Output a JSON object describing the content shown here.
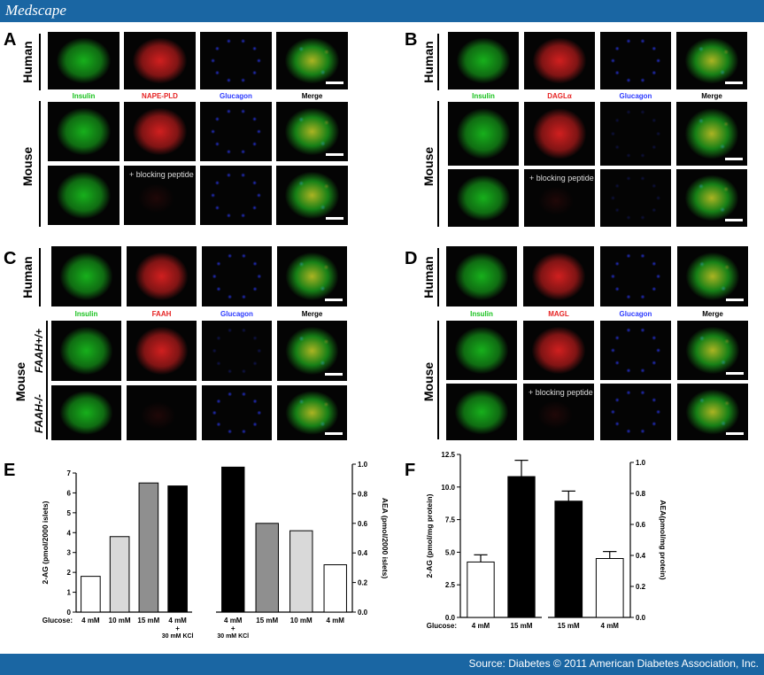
{
  "header": {
    "logo": "Medscape"
  },
  "footer": {
    "source": "Source: Diabetes © 2011 American Diabetes Association, Inc."
  },
  "colors": {
    "bar": "#1a66a3",
    "insulin": "#19c21e",
    "red": "#e62222",
    "glucagon": "#2d3bff"
  },
  "panels": {
    "A": {
      "letter": "A",
      "human": "Human",
      "mouse": "Mouse",
      "channels": [
        "Insulin",
        "NAPE-PLD",
        "Glucagon",
        "Merge"
      ],
      "note": "+ blocking peptide"
    },
    "B": {
      "letter": "B",
      "human": "Human",
      "mouse": "Mouse",
      "channels": [
        "Insulin",
        "DAGLα",
        "Glucagon",
        "Merge"
      ],
      "note": "+ blocking peptide"
    },
    "C": {
      "letter": "C",
      "human": "Human",
      "mouse": "Mouse",
      "wt": "FAAH+/+",
      "ko": "FAAH-/-",
      "channels": [
        "Insulin",
        "FAAH",
        "Glucagon",
        "Merge"
      ]
    },
    "D": {
      "letter": "D",
      "human": "Human",
      "mouse": "Mouse",
      "channels": [
        "Insulin",
        "MAGL",
        "Glucagon",
        "Merge"
      ],
      "note": "+ blocking peptide"
    }
  },
  "chart_data": [
    {
      "panel": "E",
      "type": "bar",
      "part": "left",
      "categories": [
        "4 mM",
        "10 mM",
        "15 mM",
        "4 mM + 30 mM KCl"
      ],
      "values": [
        1.8,
        3.8,
        6.5,
        6.35
      ],
      "colors": [
        "#ffffff",
        "#d9d9d9",
        "#8f8f8f",
        "#000000"
      ],
      "ylabel": "2-AG (pmol/2000 islets)",
      "ylim": [
        0,
        7
      ],
      "yticks": [
        "0",
        "1",
        "2",
        "3",
        "4",
        "5",
        "6",
        "7"
      ],
      "xlabel_prefix": "Glucose:"
    },
    {
      "panel": "E",
      "type": "bar",
      "part": "right",
      "categories": [
        "4 mM + 30 mM KCl",
        "15 mM",
        "10 mM",
        "4 mM"
      ],
      "values": [
        0.98,
        0.6,
        0.55,
        0.32
      ],
      "colors": [
        "#000000",
        "#8f8f8f",
        "#d9d9d9",
        "#ffffff"
      ],
      "ylabel": "AEA (pmol/2000 islets)",
      "ylim": [
        0,
        1.0
      ],
      "yticks": [
        "0.0",
        "0.2",
        "0.4",
        "0.6",
        "0.8",
        "1.0"
      ]
    },
    {
      "panel": "F",
      "type": "bar",
      "part": "left",
      "categories": [
        "4 mM",
        "15 mM"
      ],
      "values": [
        4.25,
        10.8
      ],
      "errors": [
        0.55,
        1.25
      ],
      "colors": [
        "#ffffff",
        "#000000"
      ],
      "ylabel": "2-AG (pmol/mg protein)",
      "ylim": [
        0,
        12.5
      ],
      "yticks": [
        "0.0",
        "2.5",
        "5.0",
        "7.5",
        "10.0",
        "12.5"
      ],
      "xlabel_prefix": "Glucose:"
    },
    {
      "panel": "F",
      "type": "bar",
      "part": "right",
      "categories": [
        "15 mM",
        "4 mM"
      ],
      "values": [
        0.75,
        0.38
      ],
      "errors": [
        0.065,
        0.045
      ],
      "colors": [
        "#000000",
        "#ffffff"
      ],
      "ylabel": "AEA(pmol/mg protein)",
      "ylim": [
        0,
        1.0
      ],
      "yticks": [
        "0.0",
        "0.2",
        "0.4",
        "0.6",
        "0.8",
        "1.0"
      ]
    }
  ],
  "panel_letters": {
    "E": "E",
    "F": "F"
  }
}
